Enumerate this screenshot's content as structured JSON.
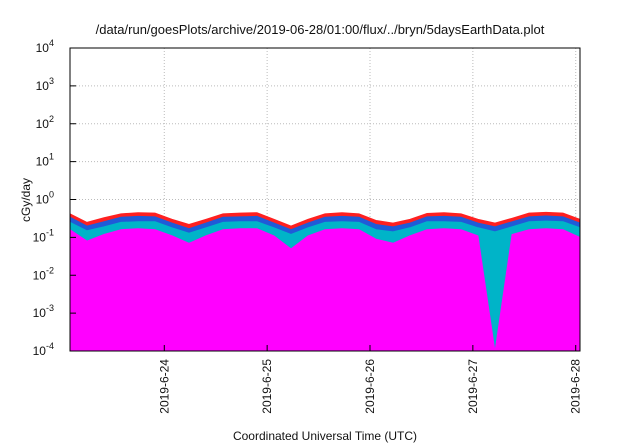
{
  "chart_data": {
    "type": "area",
    "title": "/data/run/goesPlots/archive/2019-06-28/01:00/flux/../bryn/5daysEarthData.plot",
    "xlabel": "Coordinated Universal Time (UTC)",
    "ylabel": "cGy/day",
    "yscale": "log",
    "ylim": [
      0.0001,
      10000
    ],
    "xlim": [
      "2019-06-23T02:00",
      "2019-06-28T01:00"
    ],
    "x_ticks": [
      "2019-6-24",
      "2019-6-25",
      "2019-6-26",
      "2019-6-27",
      "2019-6-28"
    ],
    "y_ticks": [
      {
        "base": "10",
        "exp": "-4"
      },
      {
        "base": "10",
        "exp": "-3"
      },
      {
        "base": "10",
        "exp": "-2"
      },
      {
        "base": "10",
        "exp": "-1"
      },
      {
        "base": "10",
        "exp": "0"
      },
      {
        "base": "10",
        "exp": "1"
      },
      {
        "base": "10",
        "exp": "2"
      },
      {
        "base": "10",
        "exp": "3"
      },
      {
        "base": "10",
        "exp": "4"
      }
    ],
    "grid": true,
    "series": [
      {
        "color": "#ff2020",
        "values": [
          0.42,
          0.25,
          0.33,
          0.42,
          0.45,
          0.44,
          0.3,
          0.22,
          0.3,
          0.42,
          0.44,
          0.45,
          0.3,
          0.2,
          0.3,
          0.42,
          0.45,
          0.42,
          0.28,
          0.24,
          0.3,
          0.43,
          0.45,
          0.42,
          0.3,
          0.24,
          0.32,
          0.44,
          0.46,
          0.44,
          0.3
        ]
      },
      {
        "color": "#1f5bd8",
        "values": [
          0.34,
          0.2,
          0.26,
          0.34,
          0.36,
          0.35,
          0.24,
          0.17,
          0.24,
          0.34,
          0.35,
          0.36,
          0.24,
          0.16,
          0.24,
          0.34,
          0.36,
          0.34,
          0.22,
          0.19,
          0.24,
          0.35,
          0.36,
          0.34,
          0.24,
          0.19,
          0.26,
          0.35,
          0.37,
          0.35,
          0.24
        ]
      },
      {
        "color": "#00b4c8",
        "values": [
          0.25,
          0.15,
          0.19,
          0.25,
          0.26,
          0.26,
          0.18,
          0.13,
          0.18,
          0.25,
          0.26,
          0.26,
          0.18,
          0.12,
          0.18,
          0.25,
          0.26,
          0.25,
          0.16,
          0.14,
          0.18,
          0.26,
          0.26,
          0.25,
          0.18,
          0.14,
          0.19,
          0.26,
          0.27,
          0.26,
          0.18
        ]
      },
      {
        "color": "#ff00ff",
        "values": [
          0.16,
          0.08,
          0.12,
          0.16,
          0.17,
          0.16,
          0.11,
          0.07,
          0.11,
          0.16,
          0.17,
          0.17,
          0.11,
          0.05,
          0.11,
          0.16,
          0.17,
          0.16,
          0.09,
          0.07,
          0.11,
          0.16,
          0.17,
          0.16,
          0.11,
          0.0001,
          0.12,
          0.16,
          0.17,
          0.16,
          0.1
        ]
      }
    ]
  }
}
